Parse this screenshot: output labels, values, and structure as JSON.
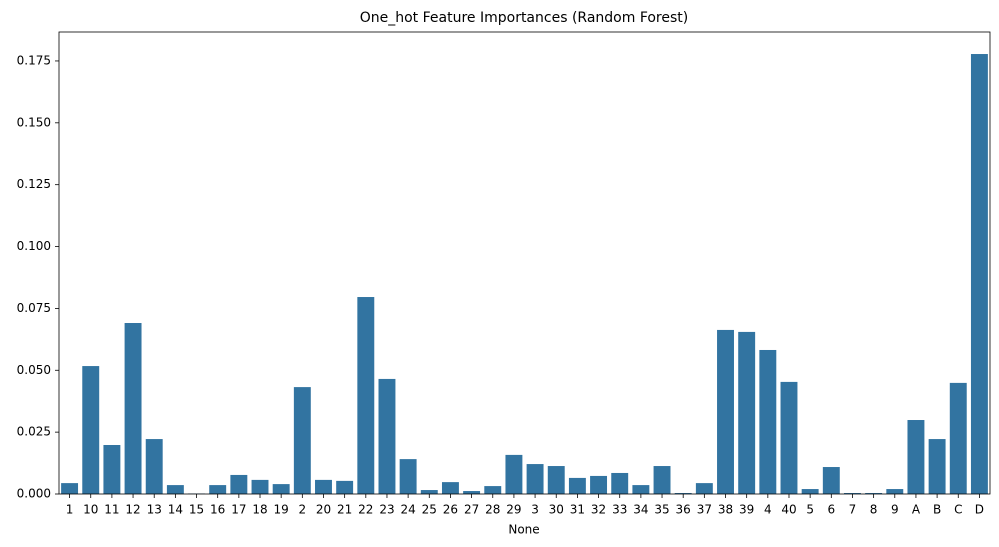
{
  "chart_data": {
    "type": "bar",
    "title": "One_hot Feature Importances (Random Forest)",
    "x_label": "None",
    "categories": [
      "1",
      "10",
      "11",
      "12",
      "13",
      "14",
      "15",
      "16",
      "17",
      "18",
      "19",
      "2",
      "20",
      "21",
      "22",
      "23",
      "24",
      "25",
      "26",
      "27",
      "28",
      "29",
      "3",
      "30",
      "31",
      "32",
      "33",
      "34",
      "35",
      "36",
      "37",
      "38",
      "39",
      "4",
      "40",
      "5",
      "6",
      "7",
      "8",
      "9",
      "A",
      "B",
      "C",
      "D"
    ],
    "values": [
      0.0044,
      0.0517,
      0.0198,
      0.0691,
      0.0222,
      0.0036,
      0.0002,
      0.0036,
      0.0077,
      0.0057,
      0.004,
      0.0432,
      0.0057,
      0.0053,
      0.0796,
      0.0465,
      0.0141,
      0.0016,
      0.0048,
      0.0012,
      0.0032,
      0.0158,
      0.0121,
      0.0113,
      0.0065,
      0.0073,
      0.0085,
      0.0036,
      0.0113,
      0.0004,
      0.0044,
      0.0663,
      0.0655,
      0.0582,
      0.0453,
      0.002,
      0.0109,
      0.0004,
      0.0004,
      0.002,
      0.0299,
      0.0222,
      0.0449,
      0.1778
    ],
    "color": "#3274a1",
    "ylim": [
      0,
      0.1867
    ],
    "yticks": [
      {
        "value": 0,
        "label": "0.000"
      },
      {
        "value": 0.025,
        "label": "0.025"
      },
      {
        "value": 0.05,
        "label": "0.050"
      },
      {
        "value": 0.075,
        "label": "0.075"
      },
      {
        "value": 0.1,
        "label": "0.100"
      },
      {
        "value": 0.125,
        "label": "0.125"
      },
      {
        "value": 0.15,
        "label": "0.150"
      },
      {
        "value": 0.175,
        "label": "0.175"
      }
    ],
    "grid": false
  }
}
